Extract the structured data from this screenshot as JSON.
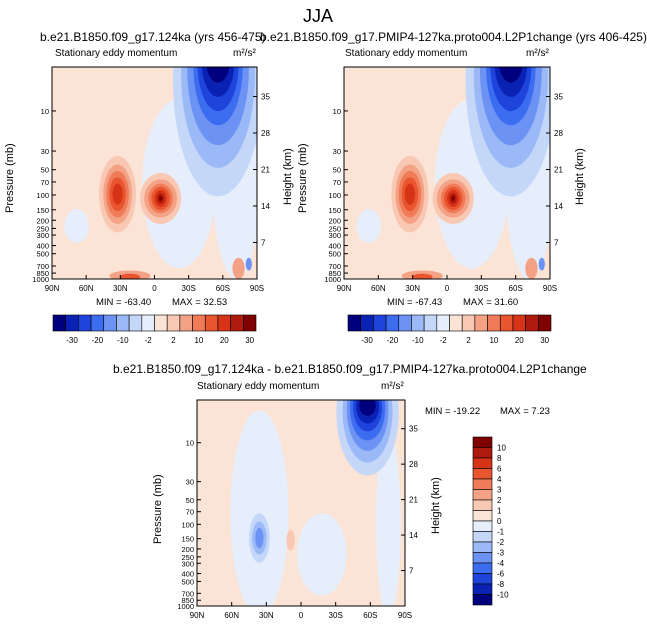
{
  "figure": {
    "super_title": "JJA"
  },
  "chart_data": [
    {
      "type": "heatmap",
      "id": "panel-a",
      "title": "b.e21.B1850.f09_g17.124ka (yrs 456-475)",
      "left_label": "Stationary eddy momentum",
      "units": "m²/s²",
      "ylabel": "Pressure (mb)",
      "ylabel_right": "Height (km)",
      "x_ticks": [
        "90N",
        "60N",
        "30N",
        "0",
        "30S",
        "60S",
        "90S"
      ],
      "y_ticks": [
        "10",
        "30",
        "50",
        "70",
        "100",
        "150",
        "200",
        "250",
        "300",
        "400",
        "500",
        "700",
        "850",
        "1000"
      ],
      "y_ticks_right": [
        "35",
        "28",
        "21",
        "14",
        "7"
      ],
      "xlim": [
        90,
        -90
      ],
      "ylim_mb": [
        1000,
        3
      ],
      "min": -63.4,
      "max": 32.53,
      "min_text": "MIN = -63.40",
      "max_text": "MAX =  32.53",
      "features": [
        {
          "name": "polar-jet-min",
          "lat": -55,
          "p_mb": 5,
          "value": -63.4
        },
        {
          "name": "subtropical-max-nh",
          "lat": 32,
          "p_mb": 150,
          "value": 18
        },
        {
          "name": "equatorial-max",
          "lat": 0,
          "p_mb": 150,
          "value": 32.5
        }
      ]
    },
    {
      "type": "heatmap",
      "id": "panel-b",
      "title": "b.e21.B1850.f09_g17.PMIP4-127ka.proto004.L2P1change (yrs 406-425)",
      "left_label": "Stationary eddy momentum",
      "units": "m²/s²",
      "ylabel": "Pressure (mb)",
      "ylabel_right": "Height (km)",
      "x_ticks": [
        "90N",
        "60N",
        "30N",
        "0",
        "30S",
        "60S",
        "90S"
      ],
      "y_ticks": [
        "10",
        "30",
        "50",
        "70",
        "100",
        "150",
        "200",
        "250",
        "300",
        "400",
        "500",
        "700",
        "850",
        "1000"
      ],
      "y_ticks_right": [
        "35",
        "28",
        "21",
        "14",
        "7"
      ],
      "xlim": [
        90,
        -90
      ],
      "ylim_mb": [
        1000,
        3
      ],
      "min": -67.43,
      "max": 31.6,
      "min_text": "MIN = -67.43",
      "max_text": "MAX =  31.60",
      "features": [
        {
          "name": "polar-jet-min",
          "lat": -55,
          "p_mb": 5,
          "value": -67.4
        },
        {
          "name": "subtropical-max-nh",
          "lat": 32,
          "p_mb": 150,
          "value": 18
        },
        {
          "name": "equatorial-max",
          "lat": 0,
          "p_mb": 150,
          "value": 31.6
        }
      ]
    },
    {
      "type": "heatmap",
      "id": "panel-c",
      "title": "b.e21.B1850.f09_g17.124ka - b.e21.B1850.f09_g17.PMIP4-127ka.proto004.L2P1change",
      "left_label": "Stationary eddy momentum",
      "units": "m²/s²",
      "ylabel": "Pressure (mb)",
      "ylabel_right": "Height (km)",
      "x_ticks": [
        "90N",
        "60N",
        "30N",
        "0",
        "30S",
        "60S",
        "90S"
      ],
      "y_ticks": [
        "10",
        "30",
        "50",
        "70",
        "100",
        "150",
        "200",
        "250",
        "300",
        "400",
        "500",
        "700",
        "850",
        "1000"
      ],
      "y_ticks_right": [
        "35",
        "28",
        "21",
        "14",
        "7"
      ],
      "xlim": [
        90,
        -90
      ],
      "ylim_mb": [
        1000,
        3
      ],
      "min": -19.22,
      "max": 7.23,
      "min_text": "MIN = -19.22",
      "max_text": "MAX =  7.23",
      "features": [
        {
          "name": "polar-jet-diff-min",
          "lat": -55,
          "p_mb": 5,
          "value": -19.2
        },
        {
          "name": "nh-subtropical-diff-min",
          "lat": 35,
          "p_mb": 150,
          "value": -5
        }
      ]
    }
  ],
  "colorbar_top": {
    "labels": [
      "-30",
      "-20",
      "-10",
      "-2",
      "2",
      "10",
      "20",
      "30"
    ],
    "colors": [
      "#00007f",
      "#0a22b4",
      "#1f44dc",
      "#3c6cf0",
      "#6c93f4",
      "#9bb8f7",
      "#c5d7f9",
      "#e6eefc",
      "#fbe3d6",
      "#f8c8b3",
      "#f4a286",
      "#f07b58",
      "#e8552f",
      "#d63317",
      "#b01a0c",
      "#7f0000"
    ]
  },
  "colorbar_bottom": {
    "labels": [
      "10",
      "8",
      "6",
      "4",
      "3",
      "2",
      "1",
      "0",
      "-1",
      "-2",
      "-3",
      "-4",
      "-6",
      "-8",
      "-10"
    ],
    "colors": [
      "#7f0000",
      "#b01a0c",
      "#d63317",
      "#e8552f",
      "#f07b58",
      "#f4a286",
      "#f8c8b3",
      "#fbe3d6",
      "#e6eefc",
      "#c5d7f9",
      "#9bb8f7",
      "#6c93f4",
      "#3c6cf0",
      "#1f44dc",
      "#0a22b4",
      "#00007f"
    ]
  }
}
